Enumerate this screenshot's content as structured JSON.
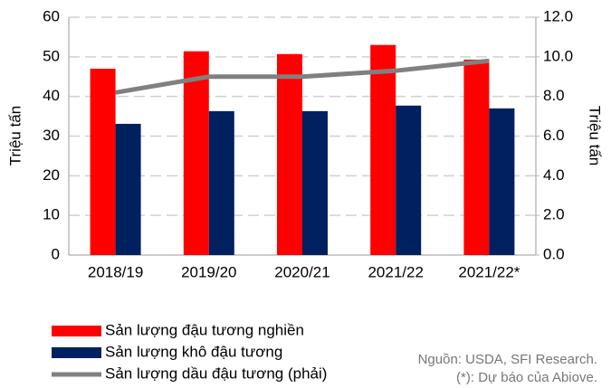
{
  "chart_data": {
    "type": "bar",
    "categories": [
      "2018/19",
      "2019/20",
      "2020/21",
      "2021/22",
      "2021/22*"
    ],
    "series": [
      {
        "name": "Sản lượng đậu tương nghiền",
        "color": "#ff0000",
        "type": "bar",
        "values": [
          47.0,
          51.4,
          50.7,
          53.0,
          49.3
        ]
      },
      {
        "name": "Sản lượng khô đậu tương",
        "color": "#002060",
        "type": "bar",
        "values": [
          33.1,
          36.3,
          36.3,
          37.7,
          37.0
        ]
      },
      {
        "name": "Sản lượng dầu đậu tương (phải)",
        "color": "#808080",
        "type": "line",
        "axis": "y2",
        "values": [
          8.2,
          9.0,
          9.0,
          9.3,
          9.8
        ]
      }
    ],
    "ylabel": "Triệu tấn",
    "y2label": "Triệu tấn",
    "ylim": [
      0,
      60
    ],
    "yticks": [
      0,
      10,
      20,
      30,
      40,
      50,
      60
    ],
    "y2lim": [
      0,
      12
    ],
    "y2ticks": [
      {
        "value": 0,
        "label": "0.0"
      },
      {
        "value": 2,
        "label": "2.0"
      },
      {
        "value": 4,
        "label": "4.0"
      },
      {
        "value": 6,
        "label": "6.0"
      },
      {
        "value": 8,
        "label": "8.0"
      },
      {
        "value": 10,
        "label": "10.0"
      },
      {
        "value": 12,
        "label": "12.0"
      }
    ],
    "grid": true,
    "legend": "bottom-left",
    "source": "Nguồn: USDA, SFI Research.",
    "note": "(*): Dự báo của Abiove."
  }
}
